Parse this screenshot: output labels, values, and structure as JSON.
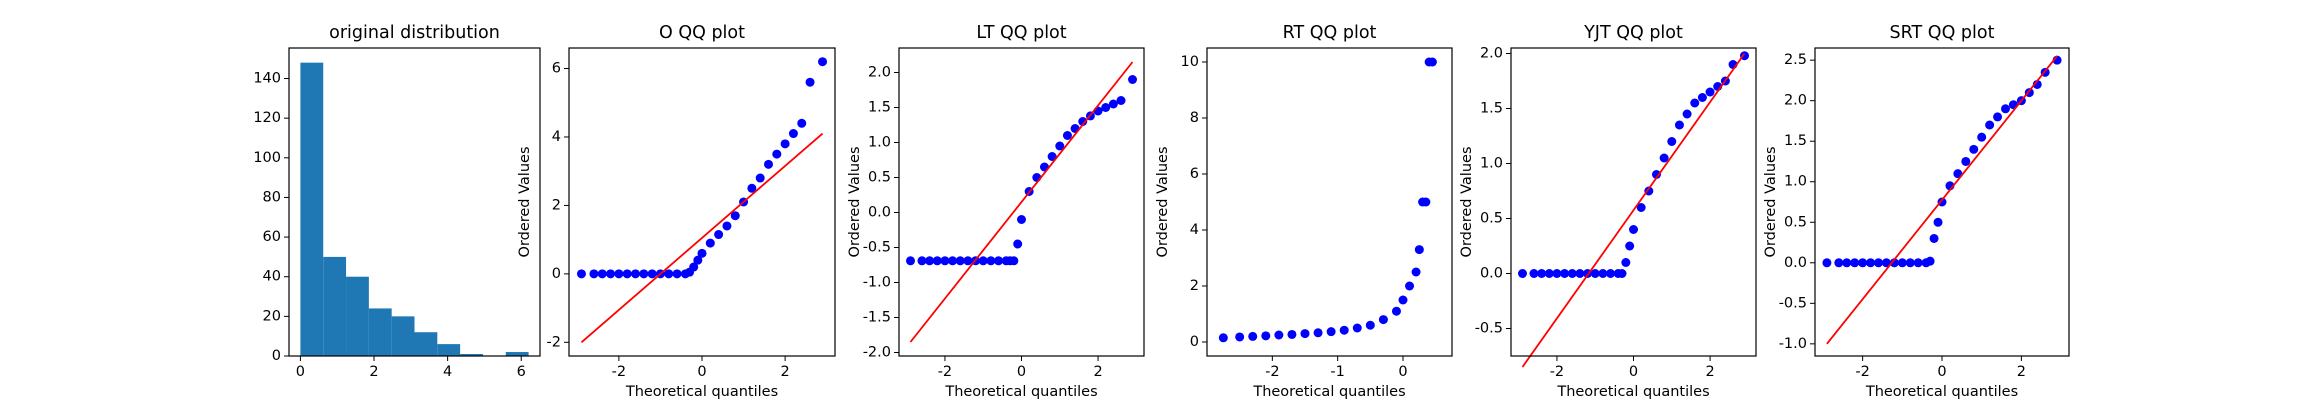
{
  "chart_data": [
    {
      "type": "histogram",
      "title": "original distribution",
      "color": "#1f77b4",
      "bins": [
        0,
        0.62,
        1.24,
        1.86,
        2.48,
        3.1,
        3.72,
        4.34,
        4.96,
        5.58,
        6.2
      ],
      "values": [
        148,
        50,
        40,
        24,
        20,
        12,
        6,
        1,
        0,
        2
      ],
      "xlim": [
        -0.31,
        6.51
      ],
      "ylim": [
        0,
        155.4
      ],
      "xticks": [
        0,
        2,
        4,
        6
      ],
      "yticks": [
        0,
        20,
        40,
        60,
        80,
        100,
        120,
        140
      ]
    },
    {
      "type": "scatter",
      "title": "O QQ plot",
      "xlabel": "Theoretical quantiles",
      "ylabel": "Ordered Values",
      "color": "#0000ff",
      "x": [
        -2.9,
        -2.6,
        -2.4,
        -2.2,
        -2.0,
        -1.8,
        -1.6,
        -1.4,
        -1.2,
        -1.0,
        -0.8,
        -0.6,
        -0.4,
        -0.3,
        -0.2,
        -0.1,
        0,
        0.2,
        0.4,
        0.6,
        0.8,
        1.0,
        1.2,
        1.4,
        1.6,
        1.8,
        2.0,
        2.2,
        2.4,
        2.6,
        2.9
      ],
      "values": [
        0,
        0,
        0,
        0,
        0,
        0,
        0,
        0,
        0,
        0,
        0,
        0,
        0,
        0.05,
        0.2,
        0.4,
        0.6,
        0.9,
        1.15,
        1.4,
        1.7,
        2.1,
        2.5,
        2.8,
        3.2,
        3.5,
        3.8,
        4.1,
        4.4,
        5.6,
        6.2
      ],
      "fit_line": {
        "color": "#ff0000",
        "x": [
          -2.9,
          2.9
        ],
        "y": [
          -2.0,
          4.1
        ]
      },
      "xlim": [
        -3.2,
        3.2
      ],
      "ylim": [
        -2.4,
        6.6
      ],
      "xticks": [
        -2,
        0,
        2
      ],
      "yticks": [
        -2,
        0,
        2,
        4,
        6
      ]
    },
    {
      "type": "scatter",
      "title": "LT QQ plot",
      "xlabel": "Theoretical quantiles",
      "ylabel": "Ordered Values",
      "color": "#0000ff",
      "x": [
        -2.9,
        -2.6,
        -2.4,
        -2.2,
        -2.0,
        -1.8,
        -1.6,
        -1.4,
        -1.2,
        -1.0,
        -0.8,
        -0.6,
        -0.4,
        -0.3,
        -0.2,
        -0.1,
        0,
        0.2,
        0.4,
        0.6,
        0.8,
        1.0,
        1.2,
        1.4,
        1.6,
        1.8,
        2.0,
        2.2,
        2.4,
        2.6,
        2.9
      ],
      "values": [
        -0.69,
        -0.69,
        -0.69,
        -0.69,
        -0.69,
        -0.69,
        -0.69,
        -0.69,
        -0.69,
        -0.69,
        -0.69,
        -0.69,
        -0.69,
        -0.69,
        -0.69,
        -0.45,
        -0.1,
        0.3,
        0.5,
        0.65,
        0.8,
        0.95,
        1.1,
        1.2,
        1.3,
        1.38,
        1.45,
        1.5,
        1.55,
        1.6,
        1.9
      ],
      "fit_line": {
        "color": "#ff0000",
        "x": [
          -2.9,
          2.9
        ],
        "y": [
          -1.85,
          2.15
        ]
      },
      "xlim": [
        -3.2,
        3.2
      ],
      "ylim": [
        -2.05,
        2.35
      ],
      "xticks": [
        -2,
        0,
        2
      ],
      "yticks": [
        {
          "value": -2,
          "label": "-2.0"
        },
        -1.5,
        {
          "value": -1,
          "label": "-1.0"
        },
        -0.5,
        {
          "value": 0,
          "label": "0.0"
        },
        0.5,
        {
          "value": 1,
          "label": "1.0"
        },
        1.5,
        {
          "value": 2,
          "label": "2.0"
        }
      ]
    },
    {
      "type": "scatter",
      "title": "RT QQ plot",
      "xlabel": "Theoretical quantiles",
      "ylabel": "Ordered Values",
      "color": "#0000ff",
      "x": [
        -2.75,
        -2.5,
        -2.3,
        -2.1,
        -1.9,
        -1.7,
        -1.5,
        -1.3,
        -1.1,
        -0.9,
        -0.7,
        -0.5,
        -0.3,
        -0.1,
        0.0,
        0.1,
        0.2,
        0.25,
        0.3,
        0.35,
        0.4,
        0.45
      ],
      "values": [
        0.15,
        0.18,
        0.2,
        0.22,
        0.25,
        0.27,
        0.3,
        0.33,
        0.37,
        0.42,
        0.5,
        0.6,
        0.8,
        1.1,
        1.5,
        2.0,
        2.5,
        3.3,
        5.0,
        5.0,
        10,
        10
      ],
      "xlim": [
        -3.0,
        0.75
      ],
      "ylim": [
        -0.5,
        10.5
      ],
      "xticks": [
        -2,
        -1,
        0
      ],
      "yticks": [
        0,
        2,
        4,
        6,
        8,
        10
      ]
    },
    {
      "type": "scatter",
      "title": "YJT QQ plot",
      "xlabel": "Theoretical quantiles",
      "ylabel": "Ordered Values",
      "color": "#0000ff",
      "x": [
        -2.9,
        -2.6,
        -2.4,
        -2.2,
        -2.0,
        -1.8,
        -1.6,
        -1.4,
        -1.2,
        -1.0,
        -0.8,
        -0.6,
        -0.4,
        -0.3,
        -0.2,
        -0.1,
        0,
        0.2,
        0.4,
        0.6,
        0.8,
        1.0,
        1.2,
        1.4,
        1.6,
        1.8,
        2.0,
        2.2,
        2.4,
        2.6,
        2.9
      ],
      "values": [
        0,
        0,
        0,
        0,
        0,
        0,
        0,
        0,
        0,
        0,
        0,
        0,
        0,
        0,
        0.1,
        0.25,
        0.4,
        0.6,
        0.75,
        0.9,
        1.05,
        1.2,
        1.35,
        1.45,
        1.55,
        1.6,
        1.65,
        1.7,
        1.75,
        1.9,
        1.98
      ],
      "fit_line": {
        "color": "#ff0000",
        "x": [
          -2.9,
          2.9
        ],
        "y": [
          -0.85,
          2.0
        ]
      },
      "xlim": [
        -3.2,
        3.2
      ],
      "ylim": [
        -0.75,
        2.05
      ],
      "xticks": [
        -2,
        0,
        2
      ],
      "yticks": [
        -0.5,
        {
          "value": 0,
          "label": "0.0"
        },
        0.5,
        {
          "value": 1,
          "label": "1.0"
        },
        1.5,
        {
          "value": 2,
          "label": "2.0"
        }
      ]
    },
    {
      "type": "scatter",
      "title": "SRT QQ plot",
      "xlabel": "Theoretical quantiles",
      "ylabel": "Ordered Values",
      "color": "#0000ff",
      "x": [
        -2.9,
        -2.6,
        -2.4,
        -2.2,
        -2.0,
        -1.8,
        -1.6,
        -1.4,
        -1.2,
        -1.0,
        -0.8,
        -0.6,
        -0.4,
        -0.3,
        -0.2,
        -0.1,
        0,
        0.2,
        0.4,
        0.6,
        0.8,
        1.0,
        1.2,
        1.4,
        1.6,
        1.8,
        2.0,
        2.2,
        2.4,
        2.6,
        2.9
      ],
      "values": [
        0,
        0,
        0,
        0,
        0,
        0,
        0,
        0,
        0,
        0,
        0,
        0,
        0,
        0.02,
        0.3,
        0.5,
        0.75,
        0.95,
        1.1,
        1.25,
        1.4,
        1.55,
        1.7,
        1.8,
        1.9,
        1.95,
        2.0,
        2.1,
        2.2,
        2.35,
        2.5
      ],
      "fit_line": {
        "color": "#ff0000",
        "x": [
          -2.9,
          2.9
        ],
        "y": [
          -1.0,
          2.55
        ]
      },
      "xlim": [
        -3.2,
        3.2
      ],
      "ylim": [
        -1.15,
        2.65
      ],
      "xticks": [
        -2,
        0,
        2
      ],
      "yticks": [
        {
          "value": -1,
          "label": "-1.0"
        },
        -0.5,
        {
          "value": 0,
          "label": "0.0"
        },
        0.5,
        {
          "value": 1,
          "label": "1.0"
        },
        1.5,
        {
          "value": 2,
          "label": "2.0"
        },
        2.5
      ]
    }
  ]
}
